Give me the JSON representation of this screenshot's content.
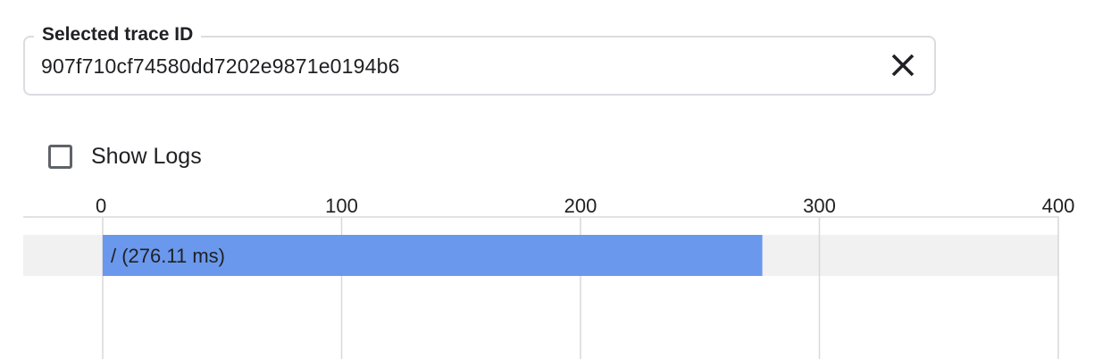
{
  "trace_field": {
    "label": "Selected trace ID",
    "value": "907f710cf74580dd7202e9871e0194b6",
    "clear_icon": "close-icon"
  },
  "show_logs": {
    "label": "Show Logs",
    "checked": false
  },
  "chart_data": {
    "type": "bar",
    "orientation": "horizontal",
    "xlim": [
      0,
      400
    ],
    "x_ticks": [
      "0",
      "100",
      "200",
      "300",
      "400"
    ],
    "grid": true,
    "spans": [
      {
        "label": "/ (276.11 ms)",
        "start": 0,
        "duration": 276.11
      }
    ],
    "colors": {
      "span": "#6a98ec",
      "row_background": "#f1f1f1",
      "grid": "#d9d9d9"
    }
  }
}
